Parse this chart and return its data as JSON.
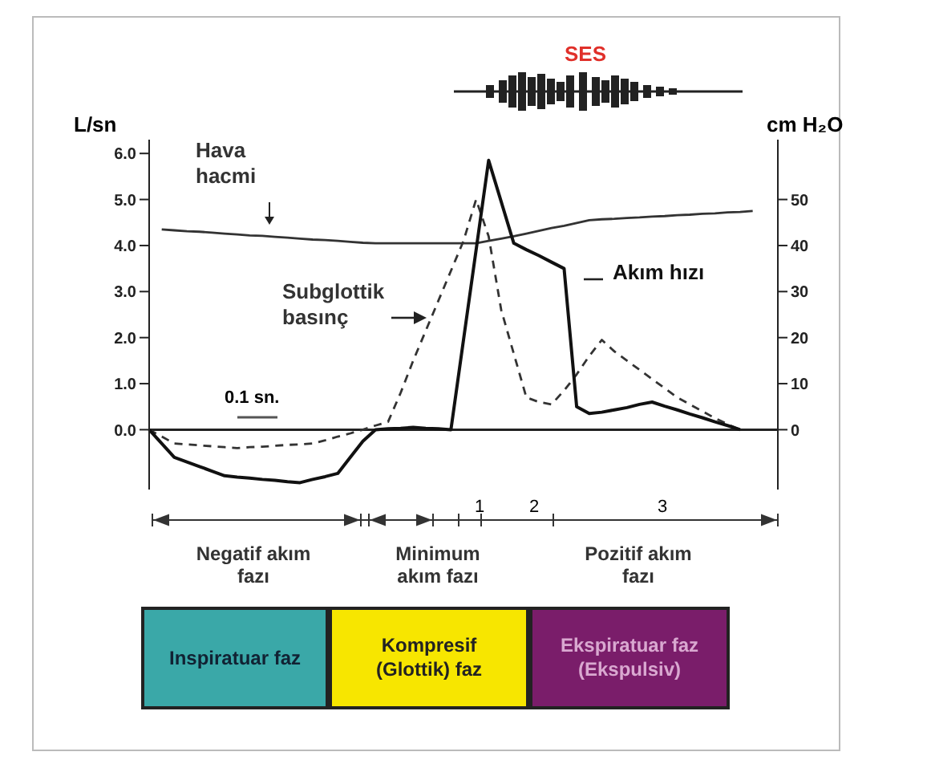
{
  "chart_data": {
    "type": "line",
    "title": "SES",
    "ylabel": "L/sn",
    "y2label": "cm H₂O",
    "categories": [
      null,
      null,
      null,
      null,
      null,
      null,
      null,
      null,
      null,
      null,
      null,
      null,
      null,
      null,
      null,
      null,
      null,
      null,
      null,
      null,
      null,
      null,
      null,
      null,
      null,
      null,
      null,
      null,
      null,
      null,
      null,
      null,
      null,
      null,
      null,
      null,
      null,
      null,
      null,
      null,
      null,
      null,
      null,
      null,
      null,
      null,
      null,
      null,
      null,
      null,
      null
    ],
    "ylim": [
      -1.3,
      6.3
    ],
    "y2lim": [
      -13,
      63
    ],
    "yticks": [
      {
        "value": 0,
        "label": "0.0"
      },
      {
        "value": 1,
        "label": "1.0"
      },
      {
        "value": 2,
        "label": "2.0"
      },
      {
        "value": 3,
        "label": "3.0"
      },
      {
        "value": 4,
        "label": "4.0"
      },
      {
        "value": 5,
        "label": "5.0"
      },
      {
        "value": 6,
        "label": "6.0"
      }
    ],
    "y2ticks": [
      0,
      10,
      20,
      30,
      40,
      50
    ],
    "tick_labels": "y",
    "marker": "none",
    "series": [
      {
        "name": "Hava hacmi",
        "color": "#333333",
        "line_style": "solid",
        "values": [
          null,
          4.35,
          4.33,
          4.31,
          4.3,
          4.28,
          4.26,
          4.24,
          4.22,
          4.21,
          4.19,
          4.17,
          4.15,
          4.13,
          4.12,
          4.1,
          4.08,
          4.06,
          4.05,
          4.05,
          4.05,
          4.05,
          4.05,
          4.05,
          4.05,
          4.05,
          4.05,
          4.1,
          4.15,
          4.2,
          4.26,
          4.32,
          4.38,
          4.43,
          4.49,
          4.55,
          4.57,
          4.58,
          4.6,
          4.61,
          4.63,
          4.64,
          4.66,
          4.67,
          4.69,
          4.7,
          4.72,
          4.73,
          4.75,
          null,
          null
        ]
      },
      {
        "name": "Subglottik basınç",
        "color": "#333333",
        "line_style": "dashed",
        "axis": "y2",
        "values": [
          0,
          -1.5,
          -3,
          -3.2,
          -3.4,
          -3.6,
          -3.8,
          -4,
          -3.8,
          -3.7,
          -3.5,
          -3.3,
          -3.2,
          -3,
          -2.3,
          -1.5,
          -0.8,
          0,
          0.9,
          1.7,
          8,
          15,
          21.5,
          28,
          34.5,
          41,
          50,
          42,
          26,
          16.5,
          7,
          6,
          5.5,
          8.5,
          12,
          16,
          19.5,
          17,
          15,
          13,
          11,
          9,
          7,
          5.5,
          4,
          2.5,
          1.2,
          0,
          null,
          null,
          null
        ]
      },
      {
        "name": "Akım hızı",
        "color": "#111111",
        "line_style": "solid",
        "values": [
          0,
          -0.3,
          -0.6,
          -0.7,
          -0.8,
          -0.9,
          -1,
          -1.03,
          -1.05,
          -1.08,
          -1.1,
          -1.13,
          -1.15,
          -1.08,
          -1.02,
          -0.95,
          -0.6,
          -0.25,
          0,
          0.02,
          0.03,
          0.05,
          0.03,
          0.02,
          0,
          1.95,
          3.9,
          5.85,
          4.95,
          4.05,
          3.91,
          3.78,
          3.64,
          3.5,
          0.5,
          0.35,
          0.38,
          0.43,
          0.48,
          0.55,
          0.6,
          0.51,
          0.43,
          0.34,
          0.26,
          0.17,
          0.09,
          0,
          null,
          null,
          null
        ]
      }
    ],
    "annotations": [
      "0.1 sn.",
      "Negatif akım fazı",
      "Minimum akım fazı",
      "Pozitif akım fazı",
      "1",
      "2",
      "3",
      "Inspiratuar faz",
      "Kompresif (Glottik) faz",
      "Ekspiratuar faz (Ekspulsiv)"
    ]
  }
}
